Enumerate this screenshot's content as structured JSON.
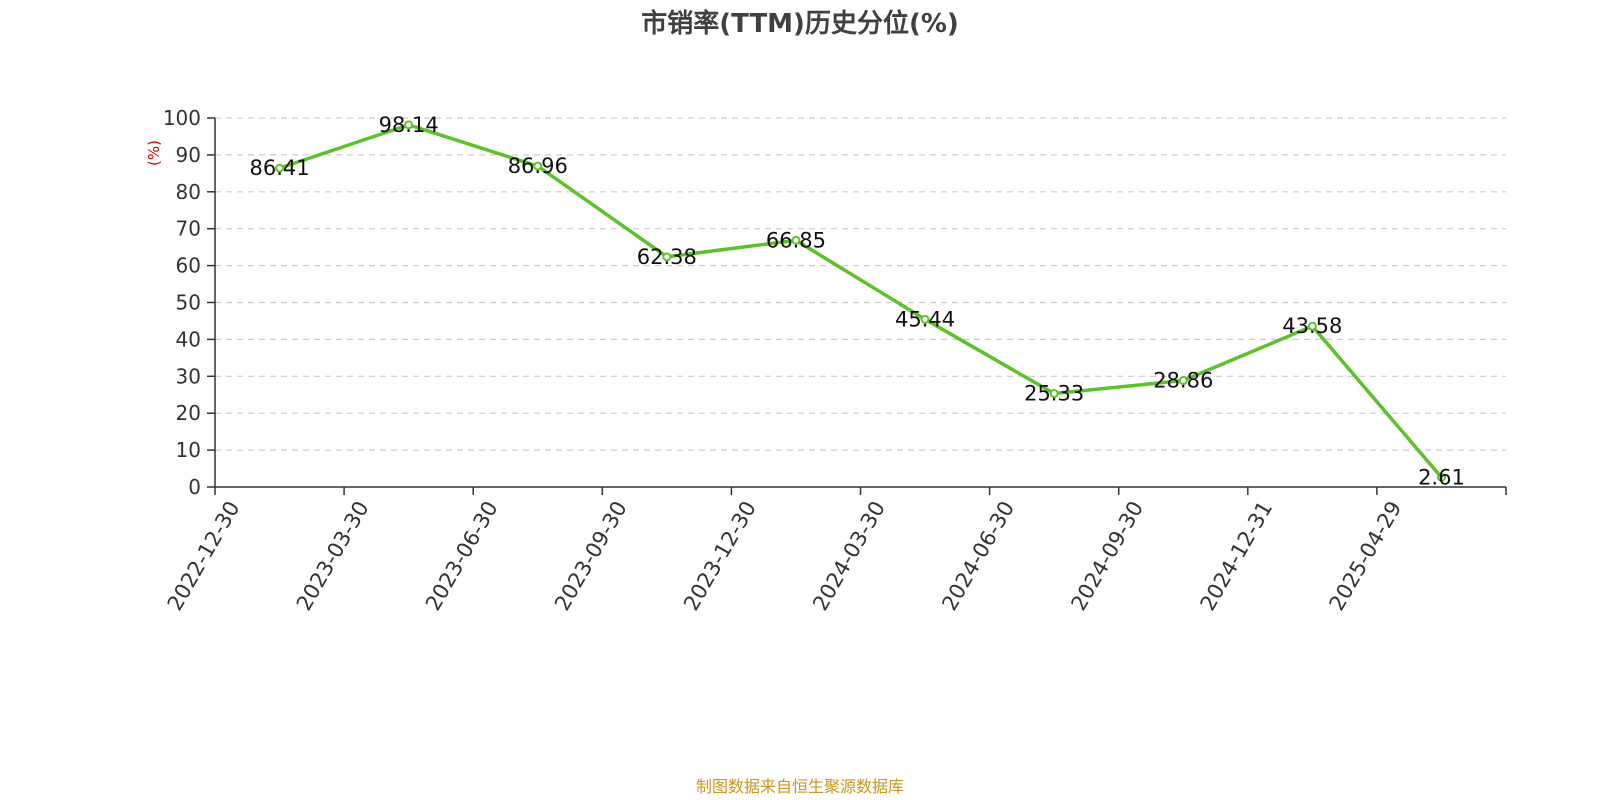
{
  "chart_data": {
    "type": "line",
    "title": "市销率(TTM)历史分位(%)",
    "xlabel": "",
    "ylabel": "(%)",
    "categories": [
      "2022-12-30",
      "2023-03-30",
      "2023-06-30",
      "2023-09-30",
      "2023-12-30",
      "2024-03-30",
      "2024-06-30",
      "2024-09-30",
      "2024-12-31",
      "2025-04-29"
    ],
    "series": [
      {
        "values": [
          86.41,
          98.14,
          86.96,
          62.38,
          66.85,
          45.44,
          25.33,
          28.86,
          43.58,
          2.61
        ],
        "labels": [
          "86.41",
          "98.14",
          "86.96",
          "62.38",
          "66.85",
          "45.44",
          "25.33",
          "28.86",
          "43.58",
          "2.61"
        ]
      }
    ],
    "ylim": [
      0,
      100
    ],
    "yticks": [
      "0",
      "10",
      "20",
      "30",
      "40",
      "50",
      "60",
      "70",
      "80",
      "90",
      "100"
    ],
    "grid": true,
    "legend": "none"
  },
  "source": "制图数据来自恒生聚源数据库",
  "colors": {
    "line": "#5cc12a",
    "marker_fill": "#ffffff",
    "grid": "#cccccc",
    "axis": "#333333",
    "ylabel": "#e60000",
    "source": "#c8961e",
    "title": "#404040"
  }
}
